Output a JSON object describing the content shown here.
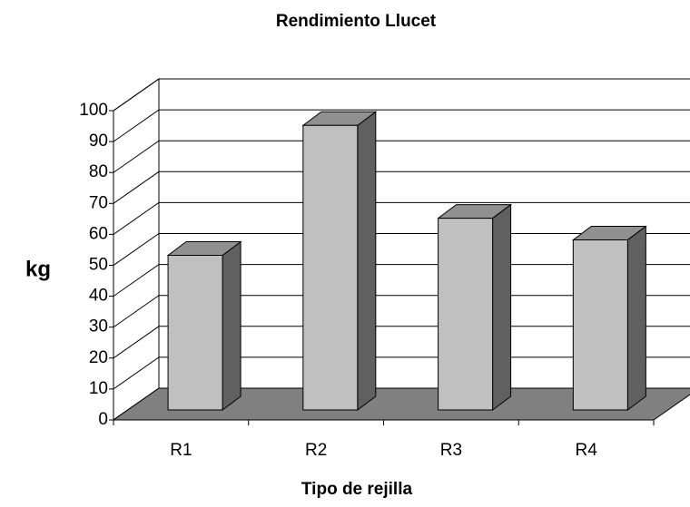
{
  "chart_data": {
    "type": "bar",
    "title": "Rendimiento Llucet",
    "x_label": "Tipo de rejilla",
    "y_label": "kg",
    "categories": [
      "R1",
      "R2",
      "R3",
      "R4"
    ],
    "values": [
      50,
      92,
      62,
      55
    ],
    "color": "#c0c0c0",
    "side_color": "#606060",
    "top_color": "#909090",
    "floor_color": "#808080",
    "ylim": [
      0,
      100
    ],
    "yticks": [
      0,
      10,
      20,
      30,
      40,
      50,
      60,
      70,
      80,
      90,
      100
    ],
    "grid": true
  }
}
